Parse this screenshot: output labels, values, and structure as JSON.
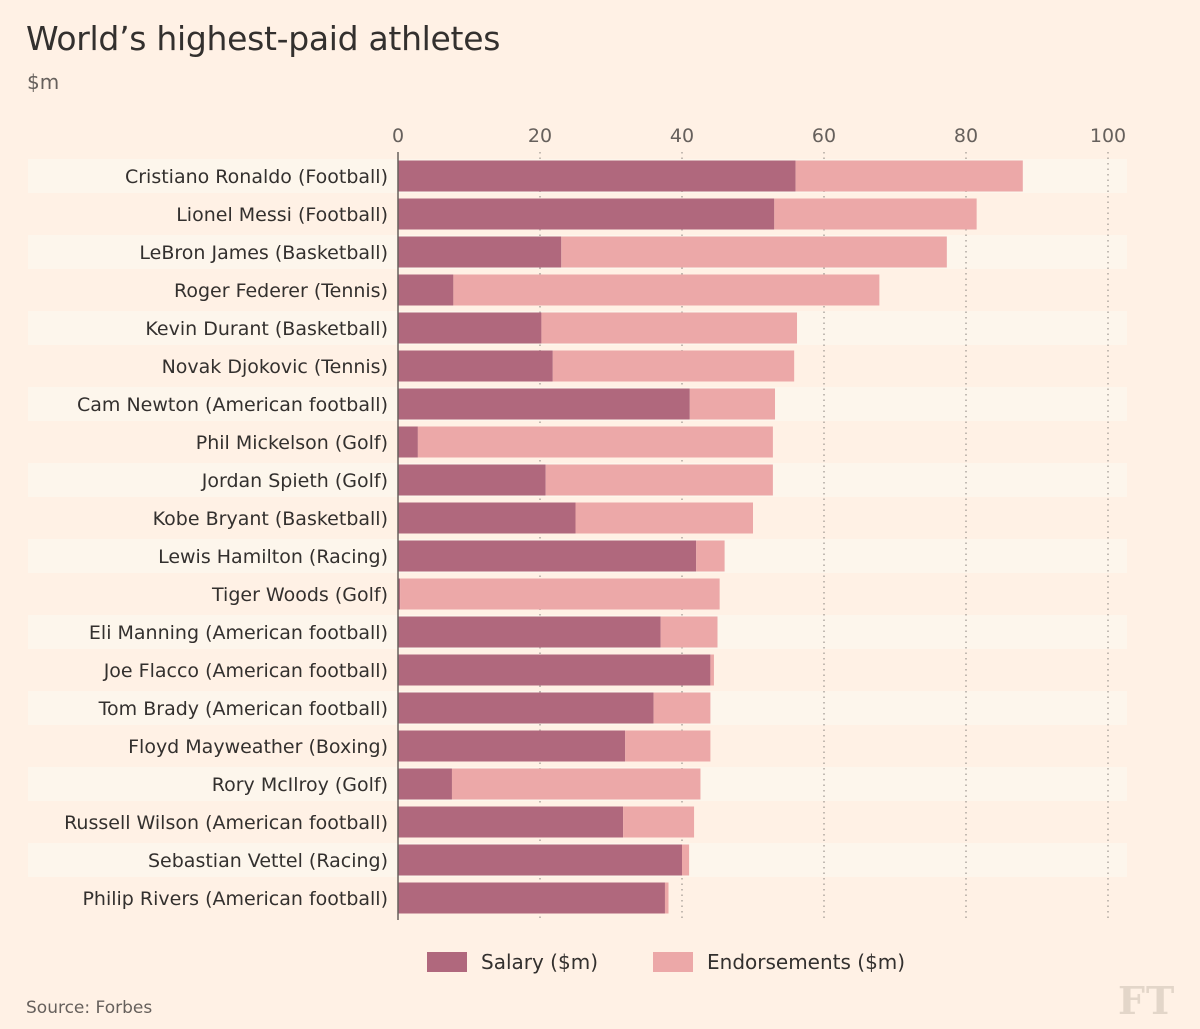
{
  "title": "World’s highest-paid athletes",
  "subtitle": "$m",
  "source": "Source: Forbes",
  "logo": "FT",
  "colors": {
    "background": "#fff1e5",
    "salary": "#b0687d",
    "endorsements": "#eca8a8",
    "band": "#fdf6ec",
    "grid": "#a39c95",
    "text": "#33302e"
  },
  "chart_data": {
    "type": "bar",
    "orientation": "horizontal",
    "stacked": true,
    "title": "World’s highest-paid athletes",
    "subtitle": "$m",
    "xlim": [
      0,
      100
    ],
    "x_ticks": [
      0,
      20,
      40,
      60,
      80,
      100
    ],
    "x_axis_position": "top",
    "grid": "vertical dotted",
    "legend_position": "bottom",
    "categories": [
      "Cristiano Ronaldo (Football)",
      "Lionel Messi (Football)",
      "LeBron James (Basketball)",
      "Roger Federer (Tennis)",
      "Kevin Durant (Basketball)",
      "Novak Djokovic (Tennis)",
      "Cam Newton (American football)",
      "Phil Mickelson (Golf)",
      "Jordan Spieth (Golf)",
      "Kobe Bryant (Basketball)",
      "Lewis Hamilton (Racing)",
      "Tiger Woods (Golf)",
      "Eli Manning (American football)",
      "Joe Flacco (American football)",
      "Tom Brady (American football)",
      "Floyd Mayweather (Boxing)",
      "Rory McIlroy (Golf)",
      "Russell Wilson (American football)",
      "Sebastian Vettel (Racing)",
      "Philip Rivers (American football)"
    ],
    "series": [
      {
        "name": "Salary ($m)",
        "color": "#b0687d",
        "values": [
          56,
          53,
          23,
          7.8,
          20.2,
          21.8,
          41.1,
          2.8,
          20.8,
          25,
          42,
          0.3,
          37,
          44,
          36,
          32,
          7.6,
          31.7,
          40,
          37.6
        ]
      },
      {
        "name": "Endorsements ($m)",
        "color": "#eca8a8",
        "values": [
          32,
          28.5,
          54.3,
          60,
          36,
          34,
          12,
          50,
          32,
          25,
          4,
          45,
          8,
          0.5,
          8,
          12,
          35,
          10,
          1,
          0.5
        ]
      }
    ]
  }
}
